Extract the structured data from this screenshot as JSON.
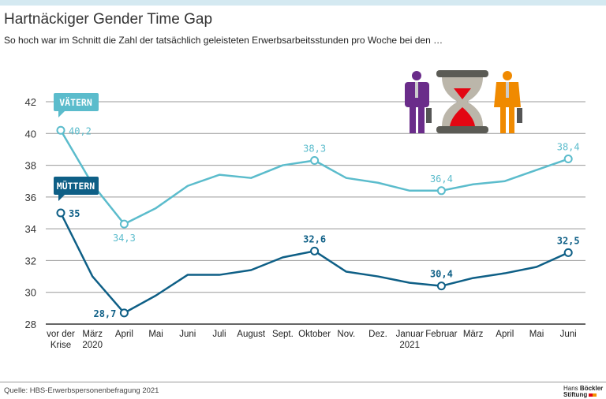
{
  "header": {
    "title": "Hartnäckiger Gender Time Gap",
    "subtitle": "So hoch war im Schnitt die Zahl der tatsächlich geleisteten Erwerbsarbeitsstunden pro Woche bei den …"
  },
  "footer": {
    "source": "Quelle: HBS-Erwerbspersonenbefragung 2021",
    "logo_line1a": "Hans",
    "logo_line1b": "Böckler",
    "logo_line2": "Stiftung"
  },
  "chart_data": {
    "type": "line",
    "categories": [
      [
        "vor der",
        "Krise"
      ],
      [
        "März",
        "2020"
      ],
      [
        "April"
      ],
      [
        "Mai"
      ],
      [
        "Juni"
      ],
      [
        "Juli"
      ],
      [
        "August"
      ],
      [
        "Sept."
      ],
      [
        "Oktober"
      ],
      [
        "Nov."
      ],
      [
        "Dez."
      ],
      [
        "Januar",
        "2021"
      ],
      [
        "Februar"
      ],
      [
        "März"
      ],
      [
        "April"
      ],
      [
        "Mai"
      ],
      [
        "Juni"
      ]
    ],
    "ylim": [
      28,
      42
    ],
    "yticks": [
      28,
      30,
      32,
      34,
      36,
      38,
      40,
      42
    ],
    "grid": true,
    "series": [
      {
        "name": "VÄTERN",
        "color": "#5bbccc",
        "values": [
          40.2,
          36.8,
          34.3,
          35.3,
          36.7,
          37.4,
          37.2,
          38.0,
          38.3,
          37.2,
          36.9,
          36.4,
          36.4,
          36.8,
          37.0,
          37.7,
          38.4
        ],
        "labels": [
          {
            "i": 0,
            "text": "40,2",
            "pos": "right"
          },
          {
            "i": 2,
            "text": "34,3",
            "pos": "below"
          },
          {
            "i": 8,
            "text": "38,3",
            "pos": "above"
          },
          {
            "i": 12,
            "text": "36,4",
            "pos": "above"
          },
          {
            "i": 16,
            "text": "38,4",
            "pos": "above"
          }
        ]
      },
      {
        "name": "MÜTTERN",
        "color": "#0e5f86",
        "values": [
          35.0,
          31.0,
          28.7,
          29.8,
          31.1,
          31.1,
          31.4,
          32.2,
          32.6,
          31.3,
          31.0,
          30.6,
          30.4,
          30.9,
          31.2,
          31.6,
          32.5
        ],
        "labels": [
          {
            "i": 0,
            "text": "35",
            "pos": "right"
          },
          {
            "i": 2,
            "text": "28,7",
            "pos": "left"
          },
          {
            "i": 8,
            "text": "32,6",
            "pos": "above"
          },
          {
            "i": 12,
            "text": "30,4",
            "pos": "above"
          },
          {
            "i": 16,
            "text": "32,5",
            "pos": "above"
          }
        ]
      }
    ],
    "icons": [
      "man-icon",
      "hourglass-icon",
      "woman-icon"
    ]
  }
}
